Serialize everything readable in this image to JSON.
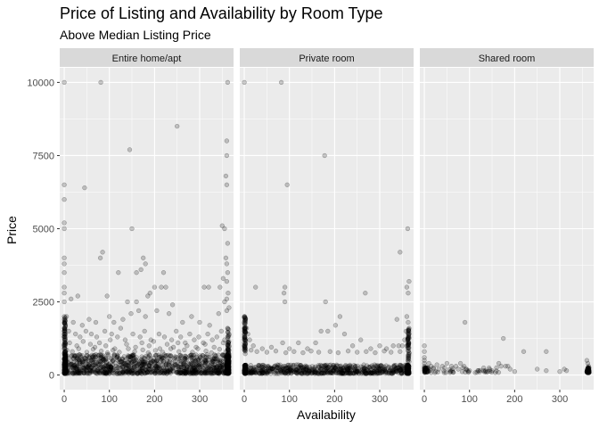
{
  "chart_data": {
    "type": "scatter",
    "title": "Price of Listing and Availability by Room Type",
    "subtitle": "Above Median Listing Price",
    "xlabel": "Availability",
    "ylabel": "Price",
    "xlim": [
      -10,
      375
    ],
    "ylim": [
      -500,
      10500
    ],
    "x_ticks": [
      0,
      100,
      200,
      300
    ],
    "y_ticks": [
      0,
      2500,
      5000,
      7500,
      10000
    ],
    "grid": true,
    "legend": "none",
    "point_color": "#000000",
    "point_alpha": 0.2,
    "panel_background": "#ebebeb",
    "strip_background": "#d9d9d9",
    "grid_color": "#ffffff",
    "facets": [
      {
        "label": "Entire home/apt",
        "dense_band": {
          "x_min": 0,
          "x_max": 365,
          "y_min": 50,
          "y_max": 700
        },
        "points": [
          [
            0,
            10000
          ],
          [
            81,
            10000
          ],
          [
            362,
            10000
          ],
          [
            250,
            8500
          ],
          [
            145,
            7700
          ],
          [
            360,
            8000
          ],
          [
            360,
            7500
          ],
          [
            358,
            6800
          ],
          [
            360,
            6500
          ],
          [
            0,
            6500
          ],
          [
            0,
            6000
          ],
          [
            45,
            6400
          ],
          [
            0,
            5200
          ],
          [
            0,
            5000
          ],
          [
            150,
            5000
          ],
          [
            350,
            5100
          ],
          [
            355,
            5000
          ],
          [
            362,
            4500
          ],
          [
            358,
            4000
          ],
          [
            0,
            4000
          ],
          [
            0,
            3800
          ],
          [
            85,
            4200
          ],
          [
            80,
            4000
          ],
          [
            175,
            4000
          ],
          [
            180,
            3800
          ],
          [
            170,
            3600
          ],
          [
            160,
            3500
          ],
          [
            0,
            3500
          ],
          [
            220,
            3500
          ],
          [
            120,
            3500
          ],
          [
            360,
            3800
          ],
          [
            362,
            3500
          ],
          [
            352,
            3300
          ],
          [
            360,
            3200
          ],
          [
            0,
            3000
          ],
          [
            0,
            2800
          ],
          [
            200,
            3000
          ],
          [
            215,
            3000
          ],
          [
            225,
            3000
          ],
          [
            310,
            3000
          ],
          [
            320,
            3000
          ],
          [
            345,
            3000
          ],
          [
            363,
            2800
          ],
          [
            360,
            2600
          ],
          [
            355,
            2500
          ],
          [
            0,
            2500
          ],
          [
            15,
            2600
          ],
          [
            30,
            2700
          ],
          [
            95,
            2700
          ],
          [
            140,
            2500
          ],
          [
            160,
            2500
          ],
          [
            185,
            2700
          ],
          [
            190,
            2800
          ],
          [
            240,
            2400
          ],
          [
            0,
            2000
          ],
          [
            0,
            1900
          ],
          [
            5,
            2000
          ],
          [
            20,
            1800
          ],
          [
            40,
            1700
          ],
          [
            55,
            1900
          ],
          [
            70,
            1800
          ],
          [
            100,
            2000
          ],
          [
            110,
            1800
          ],
          [
            130,
            1900
          ],
          [
            148,
            2100
          ],
          [
            165,
            2200
          ],
          [
            180,
            2000
          ],
          [
            205,
            2200
          ],
          [
            232,
            2100
          ],
          [
            262,
            1800
          ],
          [
            282,
            2000
          ],
          [
            300,
            1800
          ],
          [
            322,
            1700
          ],
          [
            342,
            2100
          ],
          [
            360,
            2200
          ],
          [
            365,
            2300
          ],
          [
            0,
            1600
          ],
          [
            0,
            1500
          ],
          [
            0,
            1400
          ],
          [
            0,
            1300
          ],
          [
            10,
            1500
          ],
          [
            25,
            1400
          ],
          [
            35,
            1300
          ],
          [
            48,
            1500
          ],
          [
            60,
            1400
          ],
          [
            72,
            1300
          ],
          [
            90,
            1500
          ],
          [
            105,
            1400
          ],
          [
            118,
            1300
          ],
          [
            125,
            1600
          ],
          [
            135,
            1200
          ],
          [
            152,
            1400
          ],
          [
            168,
            1300
          ],
          [
            178,
            1500
          ],
          [
            192,
            1200
          ],
          [
            210,
            1400
          ],
          [
            222,
            1300
          ],
          [
            238,
            1200
          ],
          [
            248,
            1500
          ],
          [
            258,
            1300
          ],
          [
            268,
            1100
          ],
          [
            278,
            1400
          ],
          [
            288,
            1200
          ],
          [
            298,
            1300
          ],
          [
            308,
            1100
          ],
          [
            318,
            1400
          ],
          [
            328,
            1200
          ],
          [
            338,
            1300
          ],
          [
            348,
            1500
          ],
          [
            355,
            1200
          ],
          [
            362,
            1600
          ],
          [
            365,
            1400
          ],
          [
            2,
            1200
          ],
          [
            12,
            1100
          ],
          [
            28,
            1000
          ],
          [
            42,
            1150
          ],
          [
            58,
            1050
          ],
          [
            68,
            950
          ],
          [
            78,
            1100
          ],
          [
            92,
            1000
          ],
          [
            102,
            1200
          ],
          [
            112,
            900
          ],
          [
            138,
            1050
          ],
          [
            158,
            950
          ],
          [
            172,
            1100
          ],
          [
            188,
            1000
          ],
          [
            198,
            1150
          ],
          [
            212,
            900
          ],
          [
            228,
            1050
          ],
          [
            242,
            950
          ],
          [
            252,
            1100
          ],
          [
            272,
            1000
          ],
          [
            292,
            950
          ],
          [
            312,
            1050
          ],
          [
            332,
            950
          ],
          [
            352,
            1100
          ],
          [
            365,
            1000
          ],
          [
            0,
            900
          ],
          [
            6,
            850
          ],
          [
            18,
            800
          ],
          [
            32,
            900
          ],
          [
            50,
            780
          ],
          [
            64,
            880
          ],
          [
            82,
            820
          ],
          [
            96,
            760
          ],
          [
            108,
            850
          ],
          [
            122,
            780
          ],
          [
            142,
            900
          ],
          [
            156,
            800
          ],
          [
            174,
            860
          ],
          [
            186,
            760
          ],
          [
            202,
            840
          ],
          [
            218,
            780
          ],
          [
            236,
            900
          ],
          [
            254,
            800
          ],
          [
            266,
            860
          ],
          [
            284,
            780
          ],
          [
            296,
            900
          ],
          [
            314,
            820
          ],
          [
            326,
            760
          ],
          [
            344,
            880
          ],
          [
            358,
            800
          ],
          [
            365,
            850
          ]
        ]
      },
      {
        "label": "Private room",
        "dense_band": {
          "x_min": 0,
          "x_max": 365,
          "y_min": 50,
          "y_max": 350
        },
        "points": [
          [
            0,
            10000
          ],
          [
            82,
            10000
          ],
          [
            178,
            7500
          ],
          [
            95,
            6500
          ],
          [
            362,
            5000
          ],
          [
            345,
            4200
          ],
          [
            90,
            3000
          ],
          [
            25,
            3000
          ],
          [
            88,
            2800
          ],
          [
            90,
            2500
          ],
          [
            180,
            2500
          ],
          [
            268,
            2800
          ],
          [
            365,
            3200
          ],
          [
            360,
            3000
          ],
          [
            363,
            2800
          ],
          [
            0,
            2000
          ],
          [
            0,
            1800
          ],
          [
            0,
            1600
          ],
          [
            0,
            1500
          ],
          [
            0,
            1400
          ],
          [
            0,
            1300
          ],
          [
            0,
            1200
          ],
          [
            0,
            1100
          ],
          [
            0,
            1000
          ],
          [
            5,
            1600
          ],
          [
            8,
            1400
          ],
          [
            12,
            1200
          ],
          [
            20,
            1000
          ],
          [
            40,
            900
          ],
          [
            60,
            950
          ],
          [
            85,
            1100
          ],
          [
            100,
            900
          ],
          [
            120,
            1100
          ],
          [
            140,
            900
          ],
          [
            158,
            1100
          ],
          [
            170,
            1500
          ],
          [
            185,
            1500
          ],
          [
            212,
            2000
          ],
          [
            202,
            1700
          ],
          [
            222,
            1400
          ],
          [
            240,
            1000
          ],
          [
            258,
            1200
          ],
          [
            280,
            900
          ],
          [
            300,
            1000
          ],
          [
            315,
            900
          ],
          [
            330,
            1000
          ],
          [
            338,
            1900
          ],
          [
            342,
            1000
          ],
          [
            350,
            1000
          ],
          [
            355,
            1200
          ],
          [
            358,
            1500
          ],
          [
            360,
            2000
          ],
          [
            363,
            1800
          ],
          [
            365,
            1600
          ],
          [
            365,
            1400
          ],
          [
            362,
            1200
          ],
          [
            360,
            1000
          ],
          [
            15,
            850
          ],
          [
            28,
            800
          ],
          [
            50,
            780
          ],
          [
            70,
            820
          ],
          [
            92,
            760
          ],
          [
            110,
            800
          ],
          [
            130,
            760
          ],
          [
            148,
            820
          ],
          [
            165,
            780
          ],
          [
            190,
            800
          ],
          [
            208,
            760
          ],
          [
            230,
            820
          ],
          [
            250,
            780
          ],
          [
            270,
            800
          ],
          [
            290,
            760
          ],
          [
            310,
            820
          ],
          [
            325,
            780
          ],
          [
            345,
            800
          ],
          [
            365,
            760
          ]
        ]
      },
      {
        "label": "Shared room",
        "dense_band": {
          "x_min": 0,
          "x_max": 365,
          "y_min": 80,
          "y_max": 260
        },
        "points": [
          [
            0,
            1000
          ],
          [
            0,
            800
          ],
          [
            0,
            600
          ],
          [
            0,
            500
          ],
          [
            0,
            400
          ],
          [
            0,
            300
          ],
          [
            0,
            250
          ],
          [
            0,
            200
          ],
          [
            0,
            150
          ],
          [
            10,
            400
          ],
          [
            15,
            300
          ],
          [
            20,
            250
          ],
          [
            28,
            350
          ],
          [
            32,
            200
          ],
          [
            40,
            300
          ],
          [
            45,
            250
          ],
          [
            50,
            400
          ],
          [
            55,
            180
          ],
          [
            60,
            300
          ],
          [
            62,
            150
          ],
          [
            70,
            300
          ],
          [
            75,
            200
          ],
          [
            80,
            400
          ],
          [
            85,
            250
          ],
          [
            88,
            300
          ],
          [
            92,
            200
          ],
          [
            95,
            150
          ],
          [
            90,
            1800
          ],
          [
            100,
            150
          ],
          [
            120,
            150
          ],
          [
            135,
            150
          ],
          [
            150,
            150
          ],
          [
            160,
            250
          ],
          [
            165,
            400
          ],
          [
            170,
            300
          ],
          [
            175,
            1250
          ],
          [
            180,
            300
          ],
          [
            185,
            300
          ],
          [
            190,
            200
          ],
          [
            220,
            800
          ],
          [
            250,
            200
          ],
          [
            270,
            800
          ],
          [
            270,
            150
          ],
          [
            310,
            200
          ],
          [
            315,
            150
          ],
          [
            360,
            500
          ],
          [
            362,
            400
          ],
          [
            364,
            300
          ],
          [
            365,
            250
          ],
          [
            363,
            200
          ],
          [
            365,
            150
          ],
          [
            362,
            120
          ],
          [
            365,
            100
          ],
          [
            5,
            120
          ],
          [
            25,
            120
          ],
          [
            58,
            120
          ],
          [
            98,
            120
          ],
          [
            140,
            120
          ],
          [
            200,
            120
          ],
          [
            300,
            120
          ]
        ]
      }
    ]
  }
}
